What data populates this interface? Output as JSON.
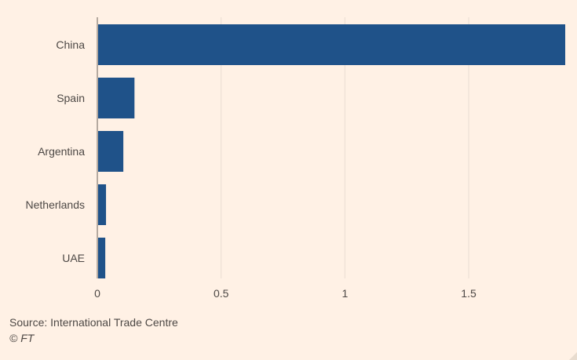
{
  "chart_data": {
    "type": "bar",
    "orientation": "horizontal",
    "categories": [
      "China",
      "Spain",
      "Argentina",
      "Netherlands",
      "UAE"
    ],
    "values": [
      1.89,
      0.15,
      0.105,
      0.035,
      0.032
    ],
    "xlim": [
      0,
      1.89
    ],
    "xticks": [
      0,
      0.5,
      1,
      1.5
    ],
    "xtick_labels": [
      "0",
      "0.5",
      "1",
      "1.5"
    ],
    "grid": true,
    "bar_color": "#1f5289",
    "title": "",
    "xlabel": "",
    "ylabel": ""
  },
  "footer": {
    "source": "Source: International Trade Centre",
    "credit": "© FT"
  }
}
